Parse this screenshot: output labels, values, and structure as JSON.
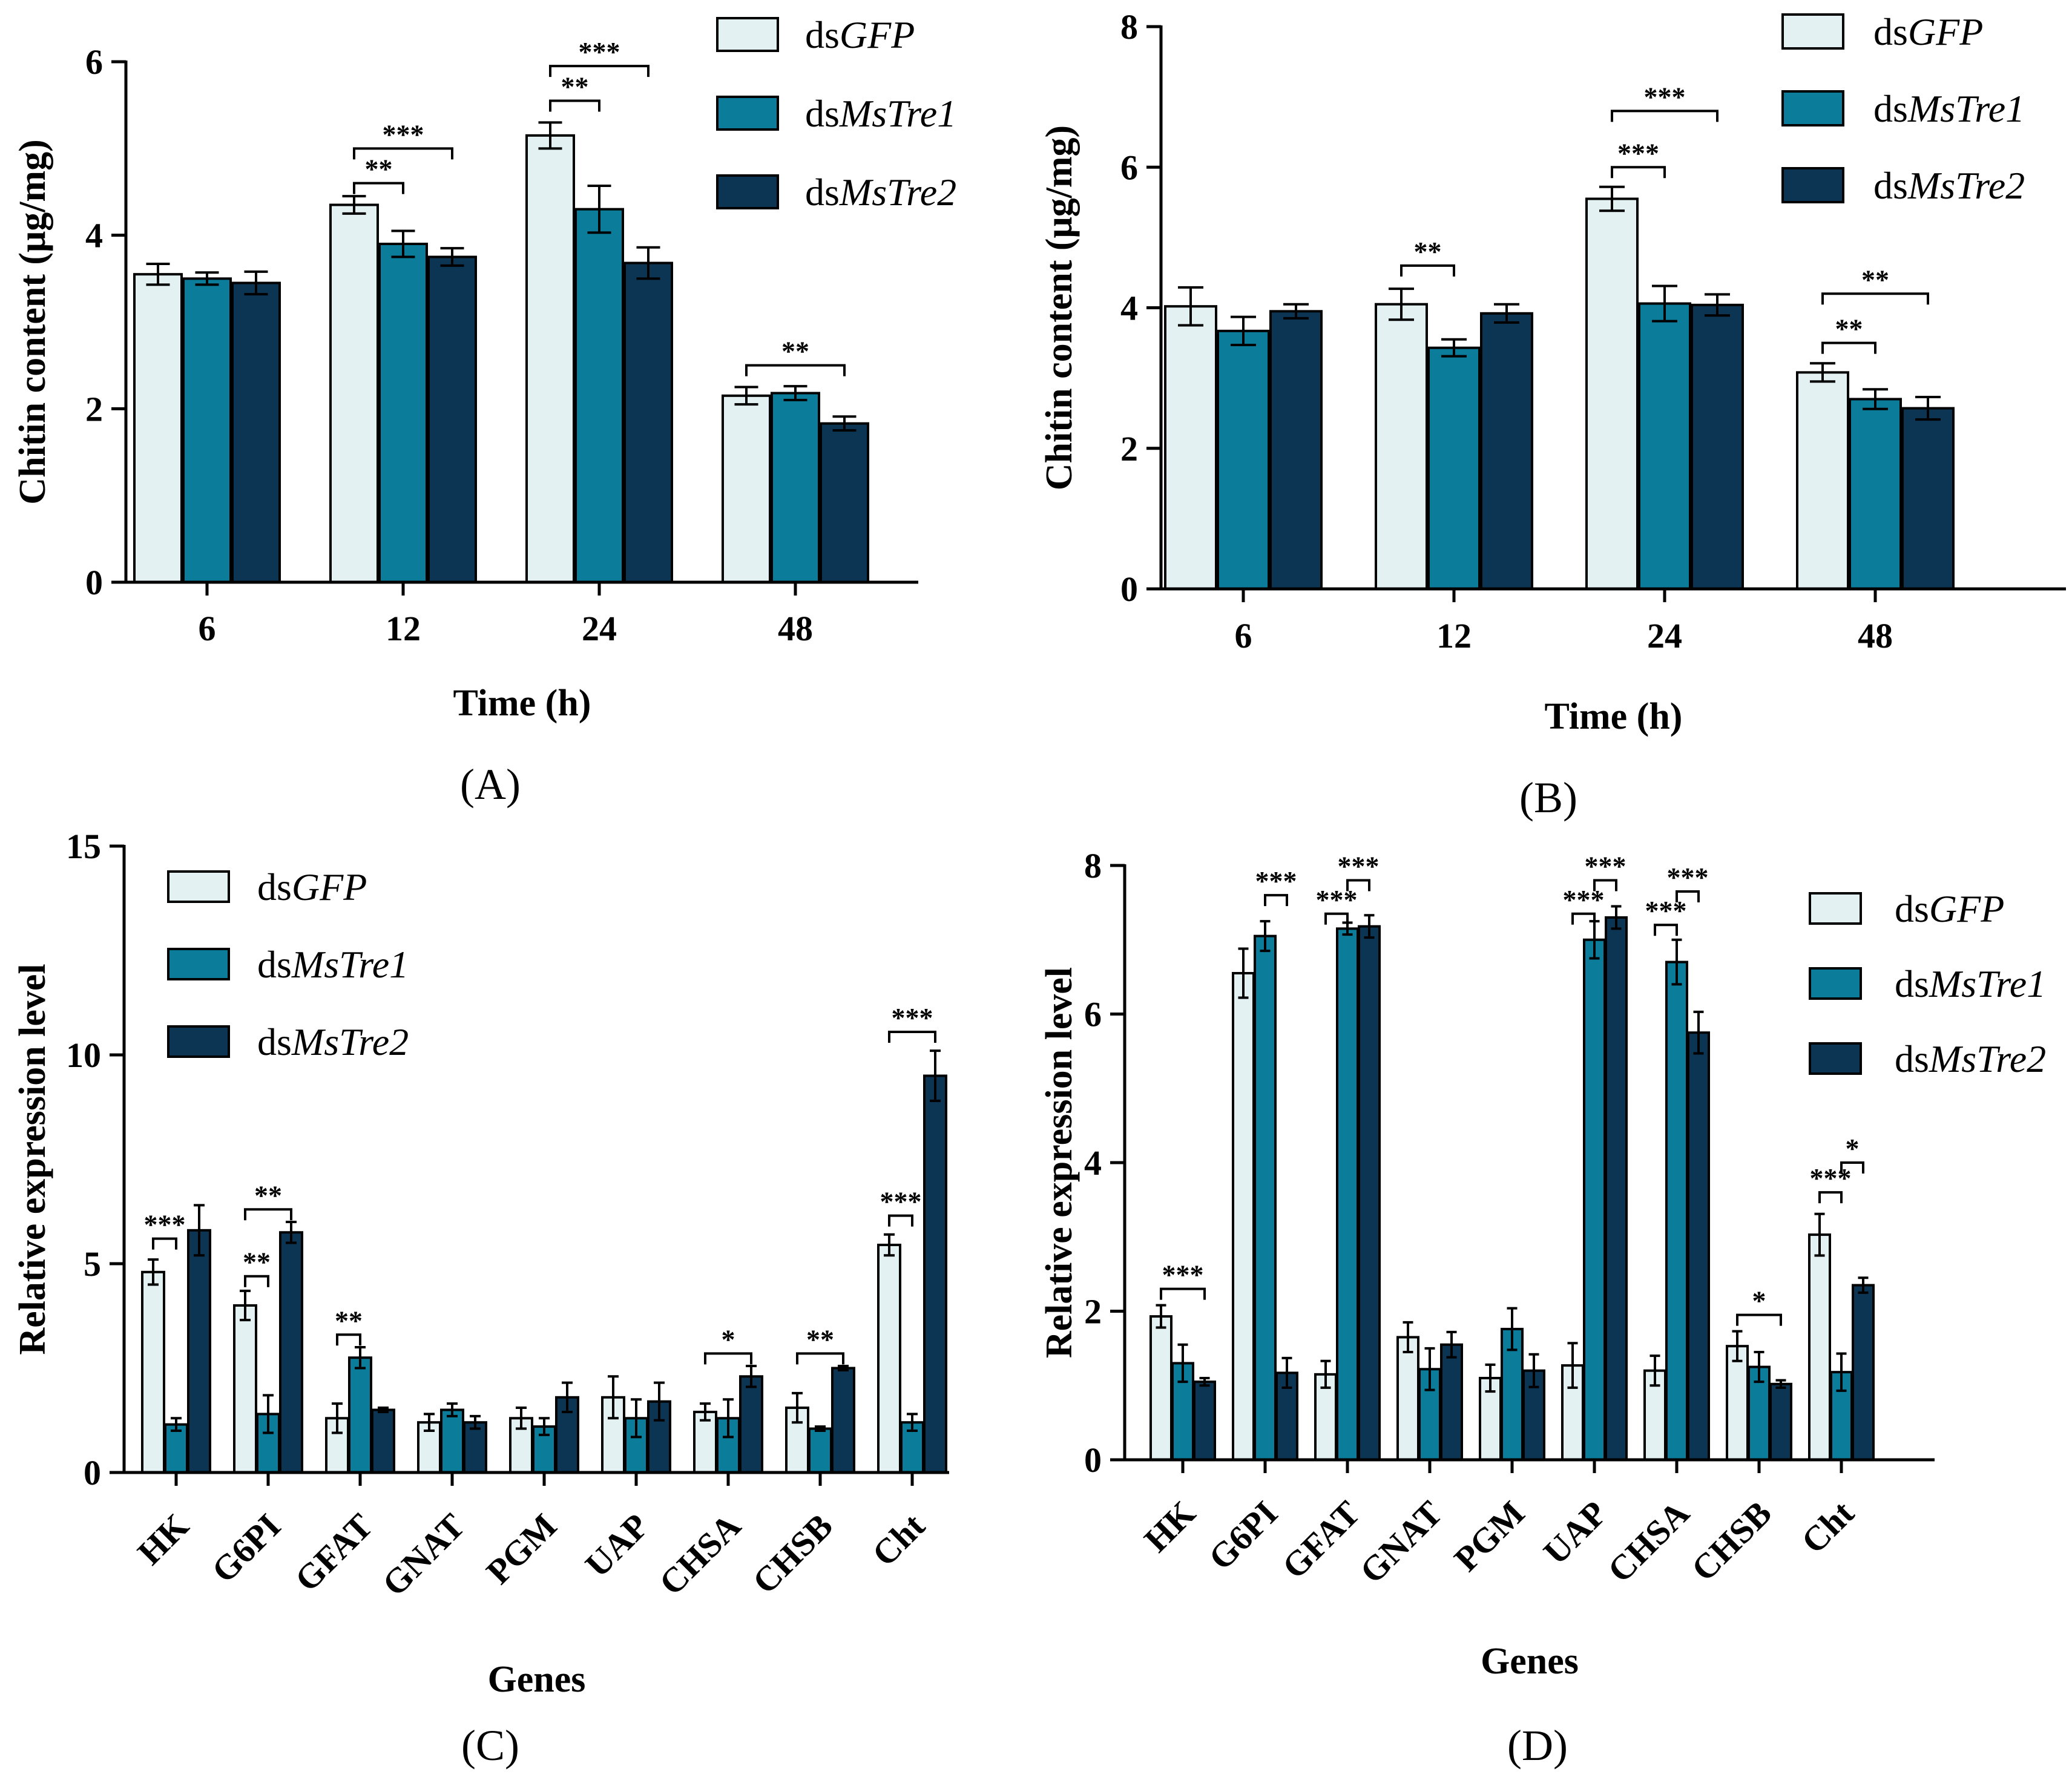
{
  "colors": {
    "dsGFP": "#e3f1f3",
    "dsMsTre1": "#0b7c9a",
    "dsMsTre2": "#0c3554",
    "axis": "#000000"
  },
  "legend_labels": [
    {
      "prefix": "ds",
      "italic": "GFP"
    },
    {
      "prefix": "ds",
      "italic": "MsTre1"
    },
    {
      "prefix": "ds",
      "italic": "MsTre2"
    }
  ],
  "chart_data": [
    {
      "panel_label": "(A)",
      "type": "bar",
      "ylabel": "Chitin content (μg/mg)",
      "xlabel": "Time (h)",
      "ylim": [
        0,
        6
      ],
      "yticks": [
        0,
        2,
        4,
        6
      ],
      "categories": [
        "6",
        "12",
        "24",
        "48"
      ],
      "series": [
        {
          "name": "dsGFP",
          "values": [
            3.55,
            4.35,
            5.15,
            2.15
          ],
          "errors": [
            0.12,
            0.1,
            0.15,
            0.1
          ]
        },
        {
          "name": "dsMsTre1",
          "values": [
            3.5,
            3.9,
            4.3,
            2.18
          ],
          "errors": [
            0.07,
            0.15,
            0.27,
            0.08
          ]
        },
        {
          "name": "dsMsTre2",
          "values": [
            3.45,
            3.75,
            3.68,
            1.83
          ],
          "errors": [
            0.13,
            0.1,
            0.18,
            0.08
          ]
        }
      ],
      "significance": [
        {
          "category": 1,
          "from": 0,
          "to": 1,
          "label": "**",
          "y": 4.6
        },
        {
          "category": 1,
          "from": 0,
          "to": 2,
          "label": "***",
          "y": 5.0
        },
        {
          "category": 2,
          "from": 0,
          "to": 1,
          "label": "**",
          "y": 5.55
        },
        {
          "category": 2,
          "from": 0,
          "to": 2,
          "label": "***",
          "y": 5.95
        },
        {
          "category": 3,
          "from": 0,
          "to": 2,
          "label": "**",
          "y": 2.5
        }
      ]
    },
    {
      "panel_label": "(B)",
      "type": "bar",
      "ylabel": "Chitin content (μg/mg)",
      "xlabel": "Time (h)",
      "ylim": [
        0,
        8
      ],
      "yticks": [
        0,
        2,
        4,
        6,
        8
      ],
      "categories": [
        "6",
        "12",
        "24",
        "48"
      ],
      "series": [
        {
          "name": "dsGFP",
          "values": [
            4.02,
            4.05,
            5.55,
            3.08
          ],
          "errors": [
            0.27,
            0.22,
            0.17,
            0.13
          ]
        },
        {
          "name": "dsMsTre1",
          "values": [
            3.67,
            3.43,
            4.06,
            2.7
          ],
          "errors": [
            0.2,
            0.12,
            0.25,
            0.14
          ]
        },
        {
          "name": "dsMsTre2",
          "values": [
            3.95,
            3.92,
            4.04,
            2.57
          ],
          "errors": [
            0.1,
            0.13,
            0.15,
            0.16
          ]
        }
      ],
      "significance": [
        {
          "category": 1,
          "from": 0,
          "to": 1,
          "label": "**",
          "y": 4.6
        },
        {
          "category": 2,
          "from": 0,
          "to": 1,
          "label": "***",
          "y": 6.0
        },
        {
          "category": 2,
          "from": 0,
          "to": 2,
          "label": "***",
          "y": 6.8
        },
        {
          "category": 3,
          "from": 0,
          "to": 1,
          "label": "**",
          "y": 3.5
        },
        {
          "category": 3,
          "from": 0,
          "to": 2,
          "label": "**",
          "y": 4.2
        }
      ]
    },
    {
      "panel_label": "(C)",
      "type": "bar",
      "ylabel": "Relative expression level",
      "xlabel": "Genes",
      "ylim": [
        0,
        15
      ],
      "yticks": [
        0,
        5,
        10,
        15
      ],
      "categories": [
        "HK",
        "G6PI",
        "GFAT",
        "GNAT",
        "PGM",
        "UAP",
        "CHSA",
        "CHSB",
        "Cht"
      ],
      "series": [
        {
          "name": "dsGFP",
          "values": [
            4.8,
            4.0,
            1.3,
            1.2,
            1.3,
            1.8,
            1.45,
            1.55,
            5.45
          ],
          "errors": [
            0.3,
            0.35,
            0.35,
            0.2,
            0.25,
            0.5,
            0.2,
            0.35,
            0.25
          ]
        },
        {
          "name": "dsMsTre1",
          "values": [
            1.15,
            1.4,
            2.75,
            1.5,
            1.1,
            1.3,
            1.3,
            1.05,
            1.2
          ],
          "errors": [
            0.15,
            0.45,
            0.25,
            0.15,
            0.2,
            0.45,
            0.45,
            0.05,
            0.2
          ]
        },
        {
          "name": "dsMsTre2",
          "values": [
            5.8,
            5.75,
            1.5,
            1.2,
            1.8,
            1.7,
            2.3,
            2.5,
            9.5
          ],
          "errors": [
            0.6,
            0.25,
            0.05,
            0.15,
            0.35,
            0.45,
            0.25,
            0.05,
            0.6
          ]
        }
      ],
      "significance": [
        {
          "category": 0,
          "from": 0,
          "to": 1,
          "label": "***",
          "y": 5.6
        },
        {
          "category": 1,
          "from": 0,
          "to": 1,
          "label": "**",
          "y": 4.7
        },
        {
          "category": 1,
          "from": 0,
          "to": 2,
          "label": "**",
          "y": 6.3
        },
        {
          "category": 2,
          "from": 0,
          "to": 1,
          "label": "**",
          "y": 3.3
        },
        {
          "category": 6,
          "from": 0,
          "to": 2,
          "label": "*",
          "y": 2.85
        },
        {
          "category": 7,
          "from": 0,
          "to": 2,
          "label": "**",
          "y": 2.85
        },
        {
          "category": 8,
          "from": 0,
          "to": 1,
          "label": "***",
          "y": 6.15
        },
        {
          "category": 8,
          "from": 0,
          "to": 2,
          "label": "***",
          "y": 10.55
        }
      ]
    },
    {
      "panel_label": "(D)",
      "type": "bar",
      "ylabel": "Relative expression level",
      "xlabel": "Genes",
      "ylim": [
        0,
        8
      ],
      "yticks": [
        0,
        2,
        4,
        6,
        8
      ],
      "categories": [
        "HK",
        "G6PI",
        "GFAT",
        "GNAT",
        "PGM",
        "UAP",
        "CHSA",
        "CHSB",
        "Cht"
      ],
      "series": [
        {
          "name": "dsGFP",
          "values": [
            1.93,
            6.55,
            1.15,
            1.65,
            1.1,
            1.27,
            1.2,
            1.53,
            3.03
          ],
          "errors": [
            0.15,
            0.33,
            0.18,
            0.2,
            0.18,
            0.3,
            0.2,
            0.2,
            0.28
          ]
        },
        {
          "name": "dsMsTre1",
          "values": [
            1.3,
            7.05,
            7.15,
            1.22,
            1.76,
            7.0,
            6.7,
            1.25,
            1.18
          ],
          "errors": [
            0.25,
            0.2,
            0.08,
            0.28,
            0.28,
            0.25,
            0.3,
            0.2,
            0.25
          ]
        },
        {
          "name": "dsMsTre2",
          "values": [
            1.05,
            1.17,
            7.18,
            1.55,
            1.2,
            7.3,
            5.75,
            1.02,
            2.35
          ],
          "errors": [
            0.05,
            0.2,
            0.15,
            0.17,
            0.22,
            0.15,
            0.28,
            0.05,
            0.1
          ]
        }
      ],
      "significance": [
        {
          "category": 0,
          "from": 0,
          "to": 2,
          "label": "***",
          "y": 2.3
        },
        {
          "category": 1,
          "from": 1,
          "to": 2,
          "label": "***",
          "y": 7.6
        },
        {
          "category": 2,
          "from": 0,
          "to": 1,
          "label": "***",
          "y": 7.35
        },
        {
          "category": 2,
          "from": 1,
          "to": 2,
          "label": "***",
          "y": 7.8
        },
        {
          "category": 5,
          "from": 0,
          "to": 1,
          "label": "***",
          "y": 7.35
        },
        {
          "category": 5,
          "from": 1,
          "to": 2,
          "label": "***",
          "y": 7.8
        },
        {
          "category": 6,
          "from": 0,
          "to": 1,
          "label": "***",
          "y": 7.2
        },
        {
          "category": 6,
          "from": 1,
          "to": 2,
          "label": "***",
          "y": 7.65
        },
        {
          "category": 7,
          "from": 0,
          "to": 2,
          "label": "*",
          "y": 1.95
        },
        {
          "category": 8,
          "from": 0,
          "to": 1,
          "label": "***",
          "y": 3.6
        },
        {
          "category": 8,
          "from": 1,
          "to": 2,
          "label": "*",
          "y": 4.0
        }
      ]
    }
  ]
}
